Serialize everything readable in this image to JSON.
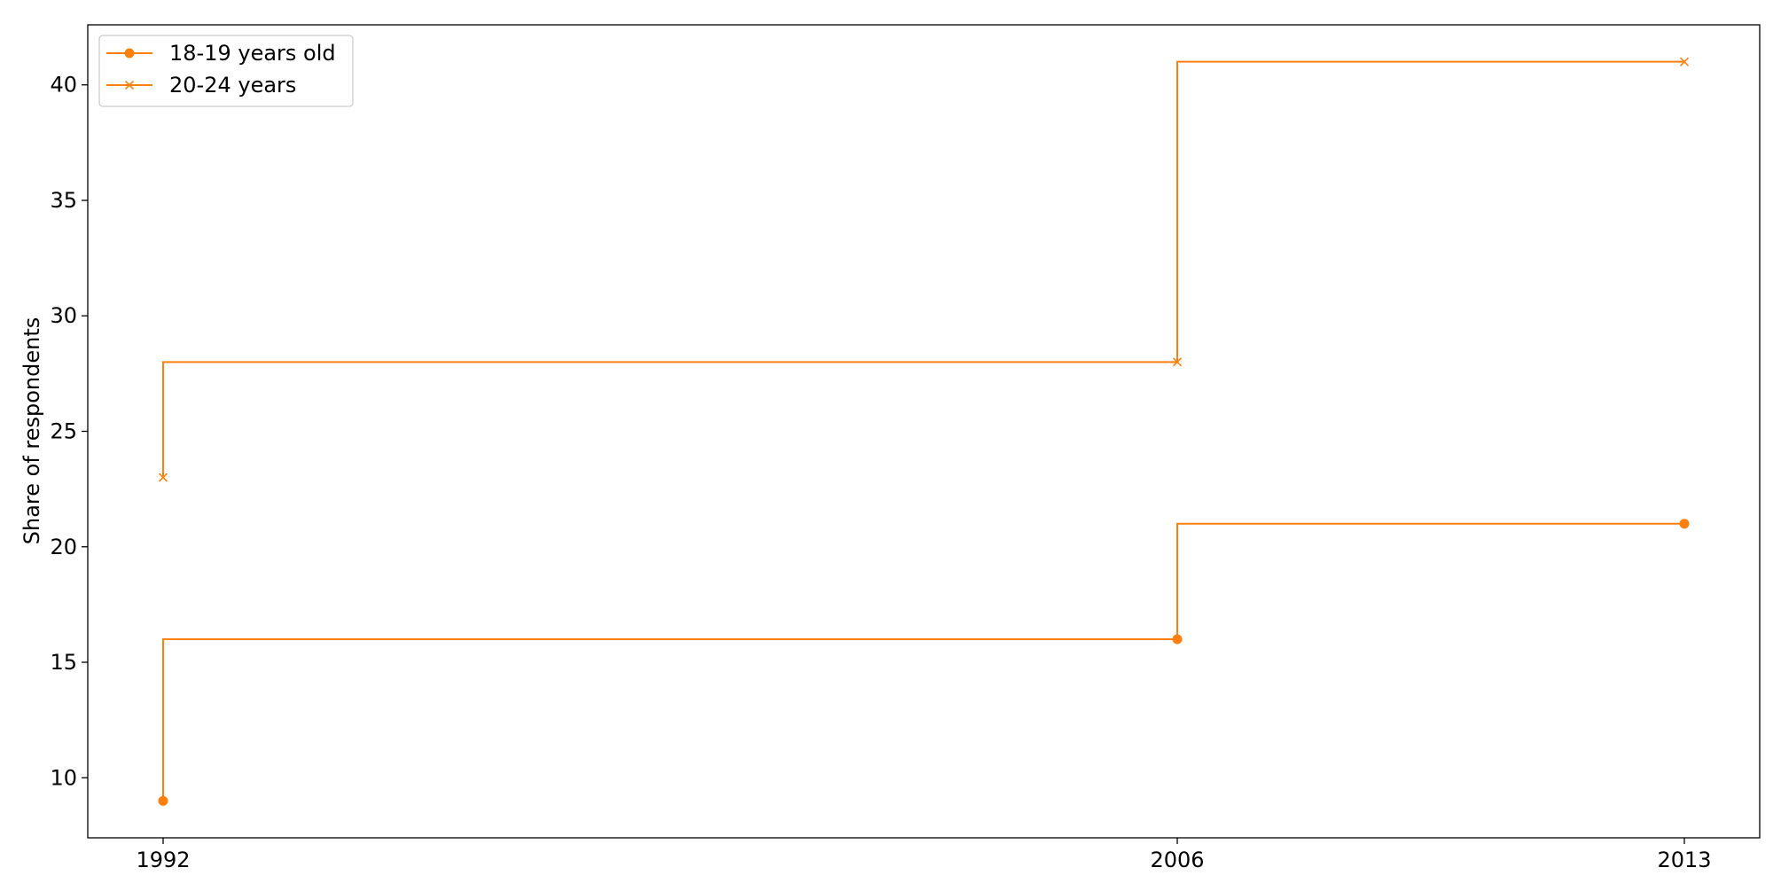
{
  "chart_data": {
    "type": "line",
    "step": "pre",
    "title": "",
    "xlabel": "",
    "ylabel": "Share of respondents",
    "x_categories": [
      "1992",
      "2006",
      "2013"
    ],
    "x": [
      1992,
      2006,
      2013
    ],
    "ylim": [
      7.4,
      42.6
    ],
    "yticks": [
      10,
      15,
      20,
      25,
      30,
      35,
      40
    ],
    "grid": false,
    "legend_position": "top-left",
    "series": [
      {
        "name": "18-19 years old",
        "values": [
          9,
          16,
          21
        ],
        "color": "#ff7f0e",
        "marker": "circle"
      },
      {
        "name": "20-24 years",
        "values": [
          23,
          28,
          41
        ],
        "color": "#ff7f0e",
        "marker": "x"
      }
    ]
  }
}
